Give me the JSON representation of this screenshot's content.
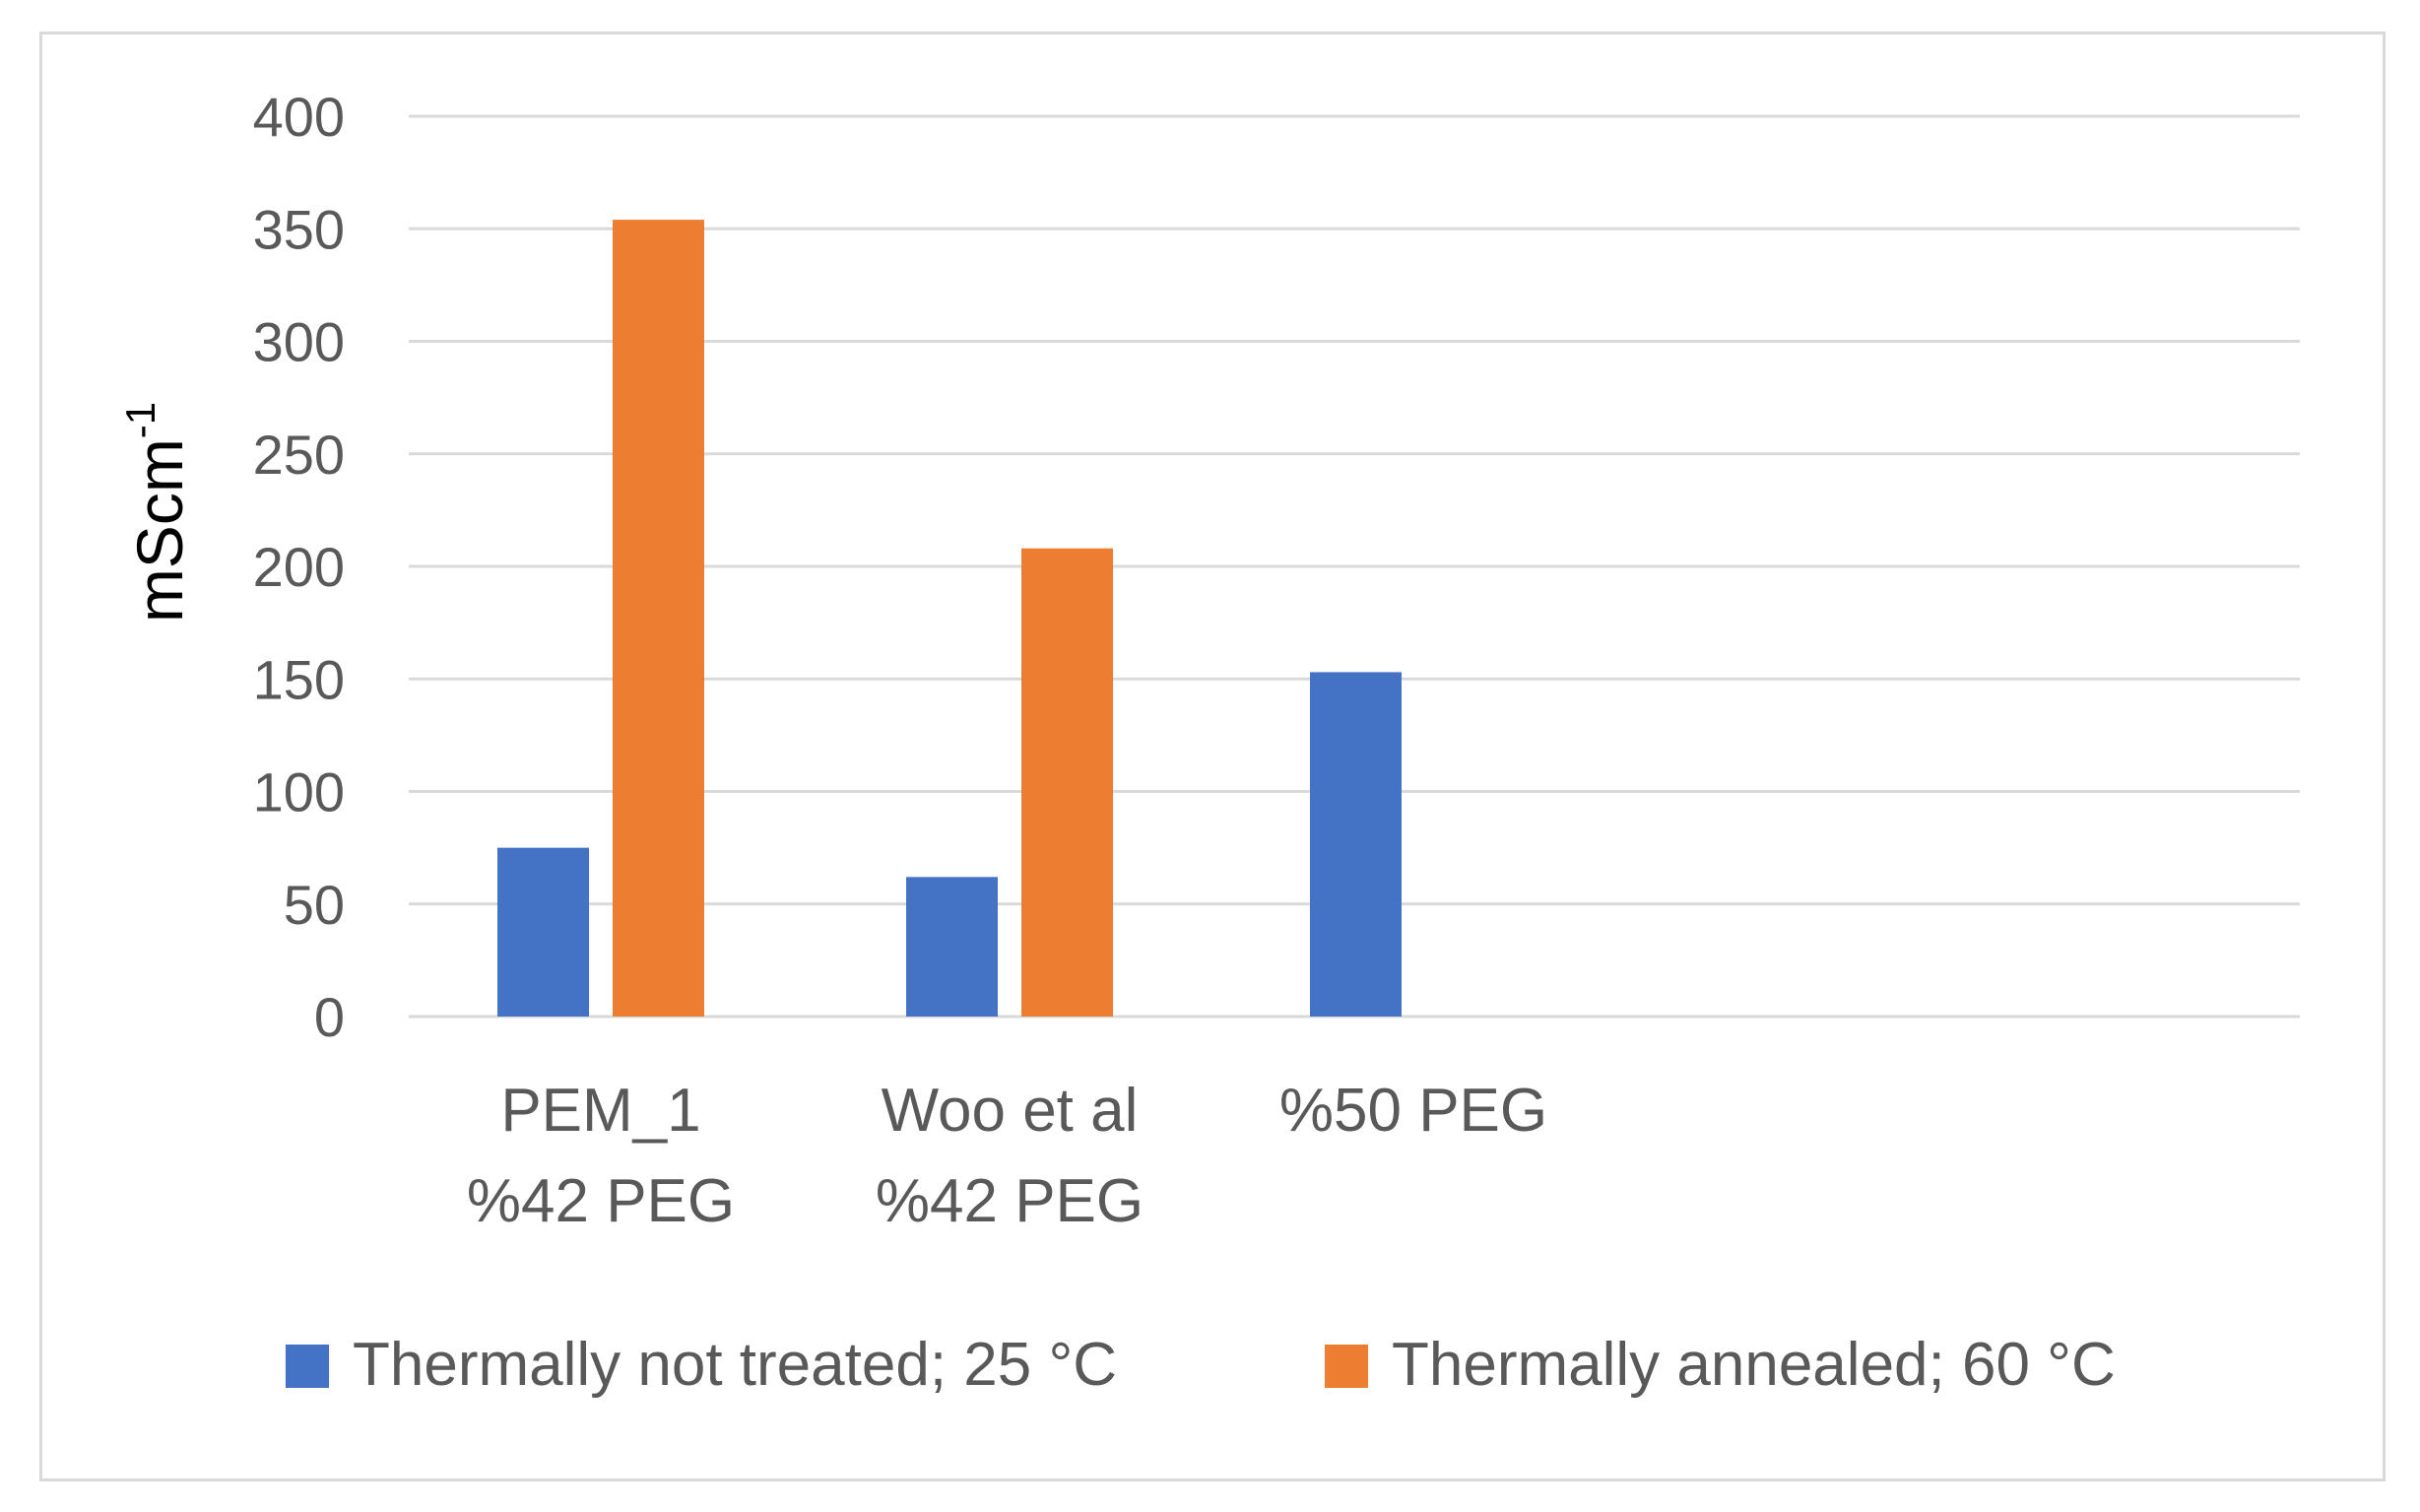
{
  "chart_data": {
    "type": "bar",
    "title": "",
    "xlabel": "",
    "ylabel": "mScm",
    "ylabel_sup": "-1",
    "ylim": [
      0,
      400
    ],
    "yticks": [
      0,
      50,
      100,
      150,
      200,
      250,
      300,
      350,
      400
    ],
    "grid": true,
    "legend_position": "bottom",
    "categories": [
      {
        "lines": [
          "PEM_1",
          "%42 PEG"
        ]
      },
      {
        "lines": [
          "Woo et al",
          "%42 PEG"
        ]
      },
      {
        "lines": [
          "%50 PEG"
        ]
      }
    ],
    "series": [
      {
        "name": "Thermally not treated; 25  °C",
        "color": "#4472C4",
        "values": [
          75,
          62,
          153
        ]
      },
      {
        "name": "Thermally annealed; 60  °C",
        "color": "#ED7D31",
        "values": [
          354,
          208,
          null
        ]
      }
    ],
    "colors": {
      "grid": "#d9d9d9",
      "text": "#595959"
    }
  }
}
